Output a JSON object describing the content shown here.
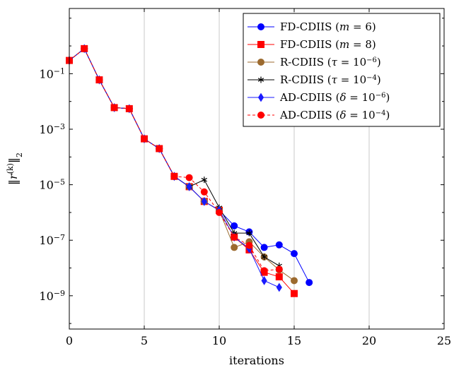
{
  "chart_data": {
    "type": "line",
    "xlabel": "iterations",
    "ylabel": "‖r(k)‖2",
    "xlim": [
      0,
      25
    ],
    "ylim_log10": [
      -10.2,
      1.35
    ],
    "yscale": "log",
    "xticks": [
      0,
      5,
      10,
      15,
      20,
      25
    ],
    "xtick_labels": [
      "0",
      "5",
      "10",
      "15",
      "20",
      "25"
    ],
    "yticks_exp": [
      -1,
      -3,
      -5,
      -7,
      -9
    ],
    "ytick_labels": [
      "10−1",
      "10−3",
      "10−5",
      "10−7",
      "10−9"
    ],
    "grid": "vertical",
    "legend_position": "top-right",
    "series": [
      {
        "name": "FD-CDIIS (m = 6)",
        "color": "#0000ff",
        "marker": "circle",
        "dash": "solid",
        "x": [
          0,
          1,
          2,
          3,
          4,
          5,
          6,
          7,
          8,
          9,
          10,
          11,
          12,
          13,
          14,
          15,
          16
        ],
        "y": [
          0.3,
          0.8,
          0.06,
          0.006,
          0.0055,
          0.00045,
          0.0002,
          2e-05,
          8.5e-06,
          2.5e-06,
          1.2e-06,
          3.3e-07,
          2e-07,
          5.5e-08,
          6.8e-08,
          3.3e-08,
          3e-09
        ]
      },
      {
        "name": "FD-CDIIS (m = 8)",
        "color": "#ff0000",
        "marker": "square",
        "dash": "solid",
        "x": [
          0,
          1,
          2,
          3,
          4,
          5,
          6,
          7,
          8,
          9,
          10,
          11,
          12,
          13,
          14,
          15
        ],
        "y": [
          0.3,
          0.8,
          0.06,
          0.006,
          0.0055,
          0.00045,
          0.0002,
          2e-05,
          8.5e-06,
          2.5e-06,
          1.2e-06,
          1.3e-07,
          4.5e-08,
          7e-09,
          4.8e-09,
          1.2e-09
        ]
      },
      {
        "name": "R-CDIIS (τ = 10−6)",
        "color": "#9c6a2f",
        "marker": "circle",
        "dash": "solid",
        "x": [
          0,
          1,
          2,
          3,
          4,
          5,
          6,
          7,
          8,
          9,
          10,
          11,
          12,
          13,
          14,
          15
        ],
        "y": [
          0.3,
          0.8,
          0.06,
          0.006,
          0.0055,
          0.00045,
          0.0002,
          2e-05,
          8.5e-06,
          2.5e-06,
          1.2e-06,
          5.5e-08,
          8.8e-08,
          2.5e-08,
          8.5e-09,
          3.5e-09
        ]
      },
      {
        "name": "R-CDIIS (τ = 10−4)",
        "color": "#000000",
        "marker": "star",
        "dash": "solid",
        "x": [
          0,
          1,
          2,
          3,
          4,
          5,
          6,
          7,
          8,
          9,
          10,
          11,
          12,
          13,
          14
        ],
        "y": [
          0.3,
          0.8,
          0.06,
          0.006,
          0.0055,
          0.00045,
          0.0002,
          2e-05,
          8.5e-06,
          1.5e-05,
          1.5e-06,
          1.8e-07,
          1.8e-07,
          2.5e-08,
          1.2e-08
        ]
      },
      {
        "name": "AD-CDIIS (δ = 10−6)",
        "color": "#1a1aff",
        "marker": "diamond",
        "dash": "solid",
        "x": [
          0,
          1,
          2,
          3,
          4,
          5,
          6,
          7,
          8,
          9,
          10,
          11,
          12,
          13,
          14
        ],
        "y": [
          0.3,
          0.8,
          0.06,
          0.006,
          0.0055,
          0.00045,
          0.0002,
          2e-05,
          8.5e-06,
          2.5e-06,
          1.2e-06,
          1.3e-07,
          5e-08,
          3.5e-09,
          2e-09
        ]
      },
      {
        "name": "AD-CDIIS (δ = 10−4)",
        "color": "#ff0000",
        "marker": "circle",
        "dash": "dashed",
        "x": [
          0,
          1,
          2,
          3,
          4,
          5,
          6,
          7,
          8,
          9,
          10,
          11,
          12,
          13,
          14
        ],
        "y": [
          0.3,
          0.8,
          0.06,
          0.006,
          0.0055,
          0.00045,
          0.0002,
          2e-05,
          1.8e-05,
          5.5e-06,
          1e-06,
          1.3e-07,
          6.5e-08,
          8e-09,
          9e-09
        ]
      }
    ]
  }
}
